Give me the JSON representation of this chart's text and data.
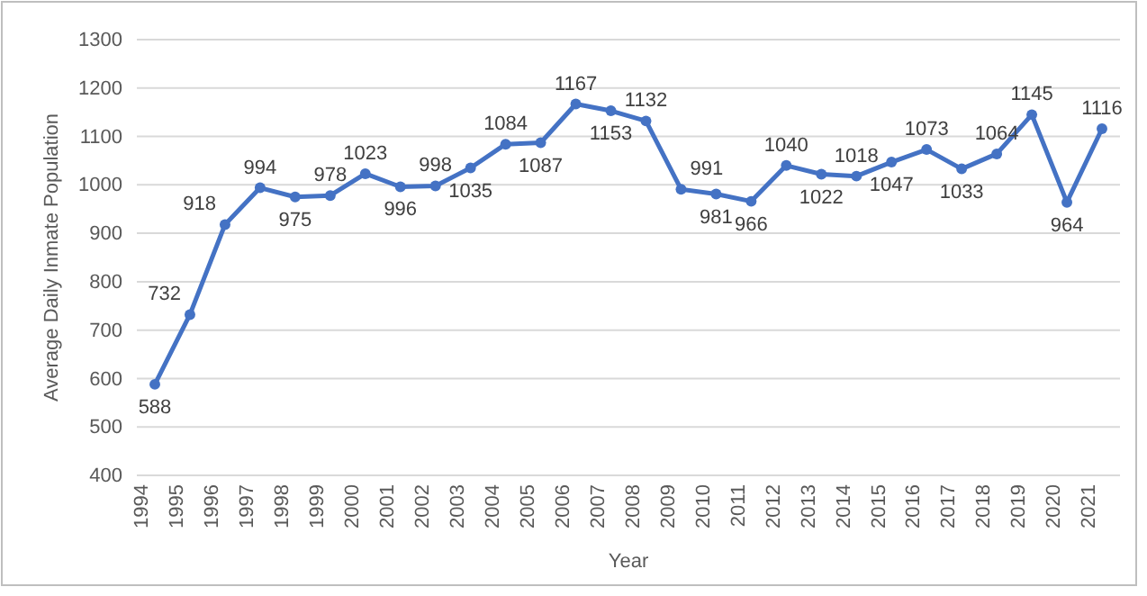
{
  "chart_data": {
    "type": "line",
    "xlabel": "Year",
    "ylabel": "Average Daily Inmate Population",
    "categories": [
      "1994",
      "1995",
      "1996",
      "1997",
      "1998",
      "1999",
      "2000",
      "2001",
      "2002",
      "2003",
      "2004",
      "2005",
      "2006",
      "2007",
      "2008",
      "2009",
      "2010",
      "2011",
      "2012",
      "2013",
      "2014",
      "2015",
      "2016",
      "2017",
      "2018",
      "2019",
      "2020",
      "2021"
    ],
    "series": [
      {
        "color": "#4472c4",
        "values": [
          588,
          732,
          918,
          994,
          975,
          978,
          1023,
          996,
          998,
          1035,
          1084,
          1087,
          1167,
          1153,
          1132,
          991,
          981,
          966,
          1040,
          1022,
          1018,
          1047,
          1073,
          1033,
          1064,
          1145,
          964,
          1116
        ]
      }
    ],
    "ylim": [
      400,
      1300
    ],
    "yticks": [
      400,
      500,
      600,
      700,
      800,
      900,
      1000,
      1100,
      1200,
      1300
    ],
    "grid": "y",
    "marker": "circle",
    "line_style": "solid",
    "data_labels": true
  }
}
